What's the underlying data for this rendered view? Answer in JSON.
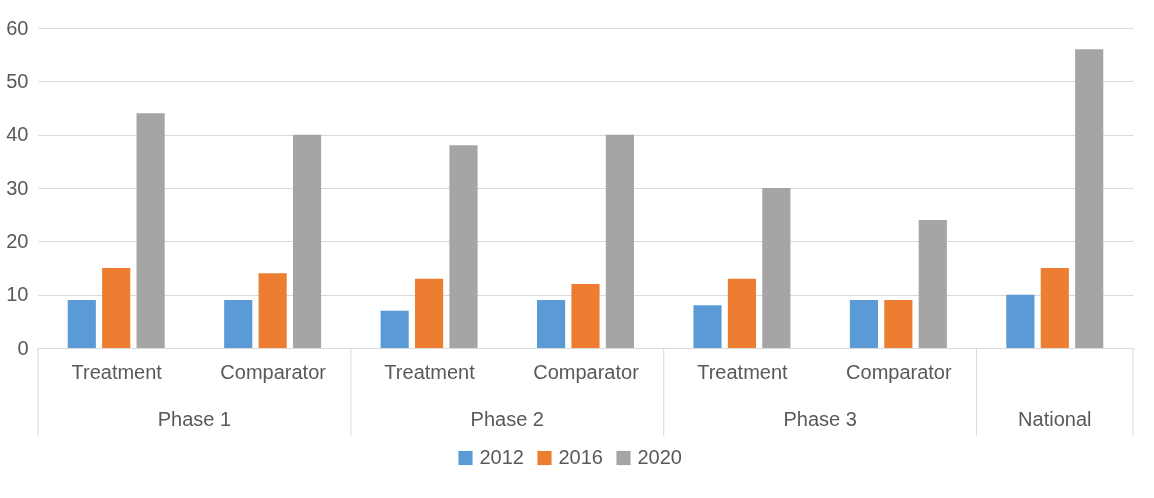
{
  "chart_data": {
    "type": "bar",
    "categories": [
      "Treatment",
      "Comparator",
      "Treatment",
      "Comparator",
      "Treatment",
      "Comparator",
      null
    ],
    "annotations": [
      "Phase 1",
      "Phase 2",
      "Phase 3",
      "National"
    ],
    "series": [
      {
        "name": "2012",
        "color": "#5b9bd5",
        "values": [
          9,
          9,
          7,
          9,
          8,
          9,
          10
        ]
      },
      {
        "name": "2016",
        "color": "#ed7d31",
        "values": [
          15,
          14,
          13,
          12,
          13,
          9,
          15
        ]
      },
      {
        "name": "2020",
        "color": "#a5a5a5",
        "values": [
          44,
          40,
          38,
          40,
          30,
          24,
          56
        ]
      }
    ],
    "ylim": [
      0,
      60
    ],
    "yticks": [
      0,
      10,
      20,
      30,
      40,
      50,
      60
    ],
    "grid": "y",
    "legend": "bottom"
  }
}
